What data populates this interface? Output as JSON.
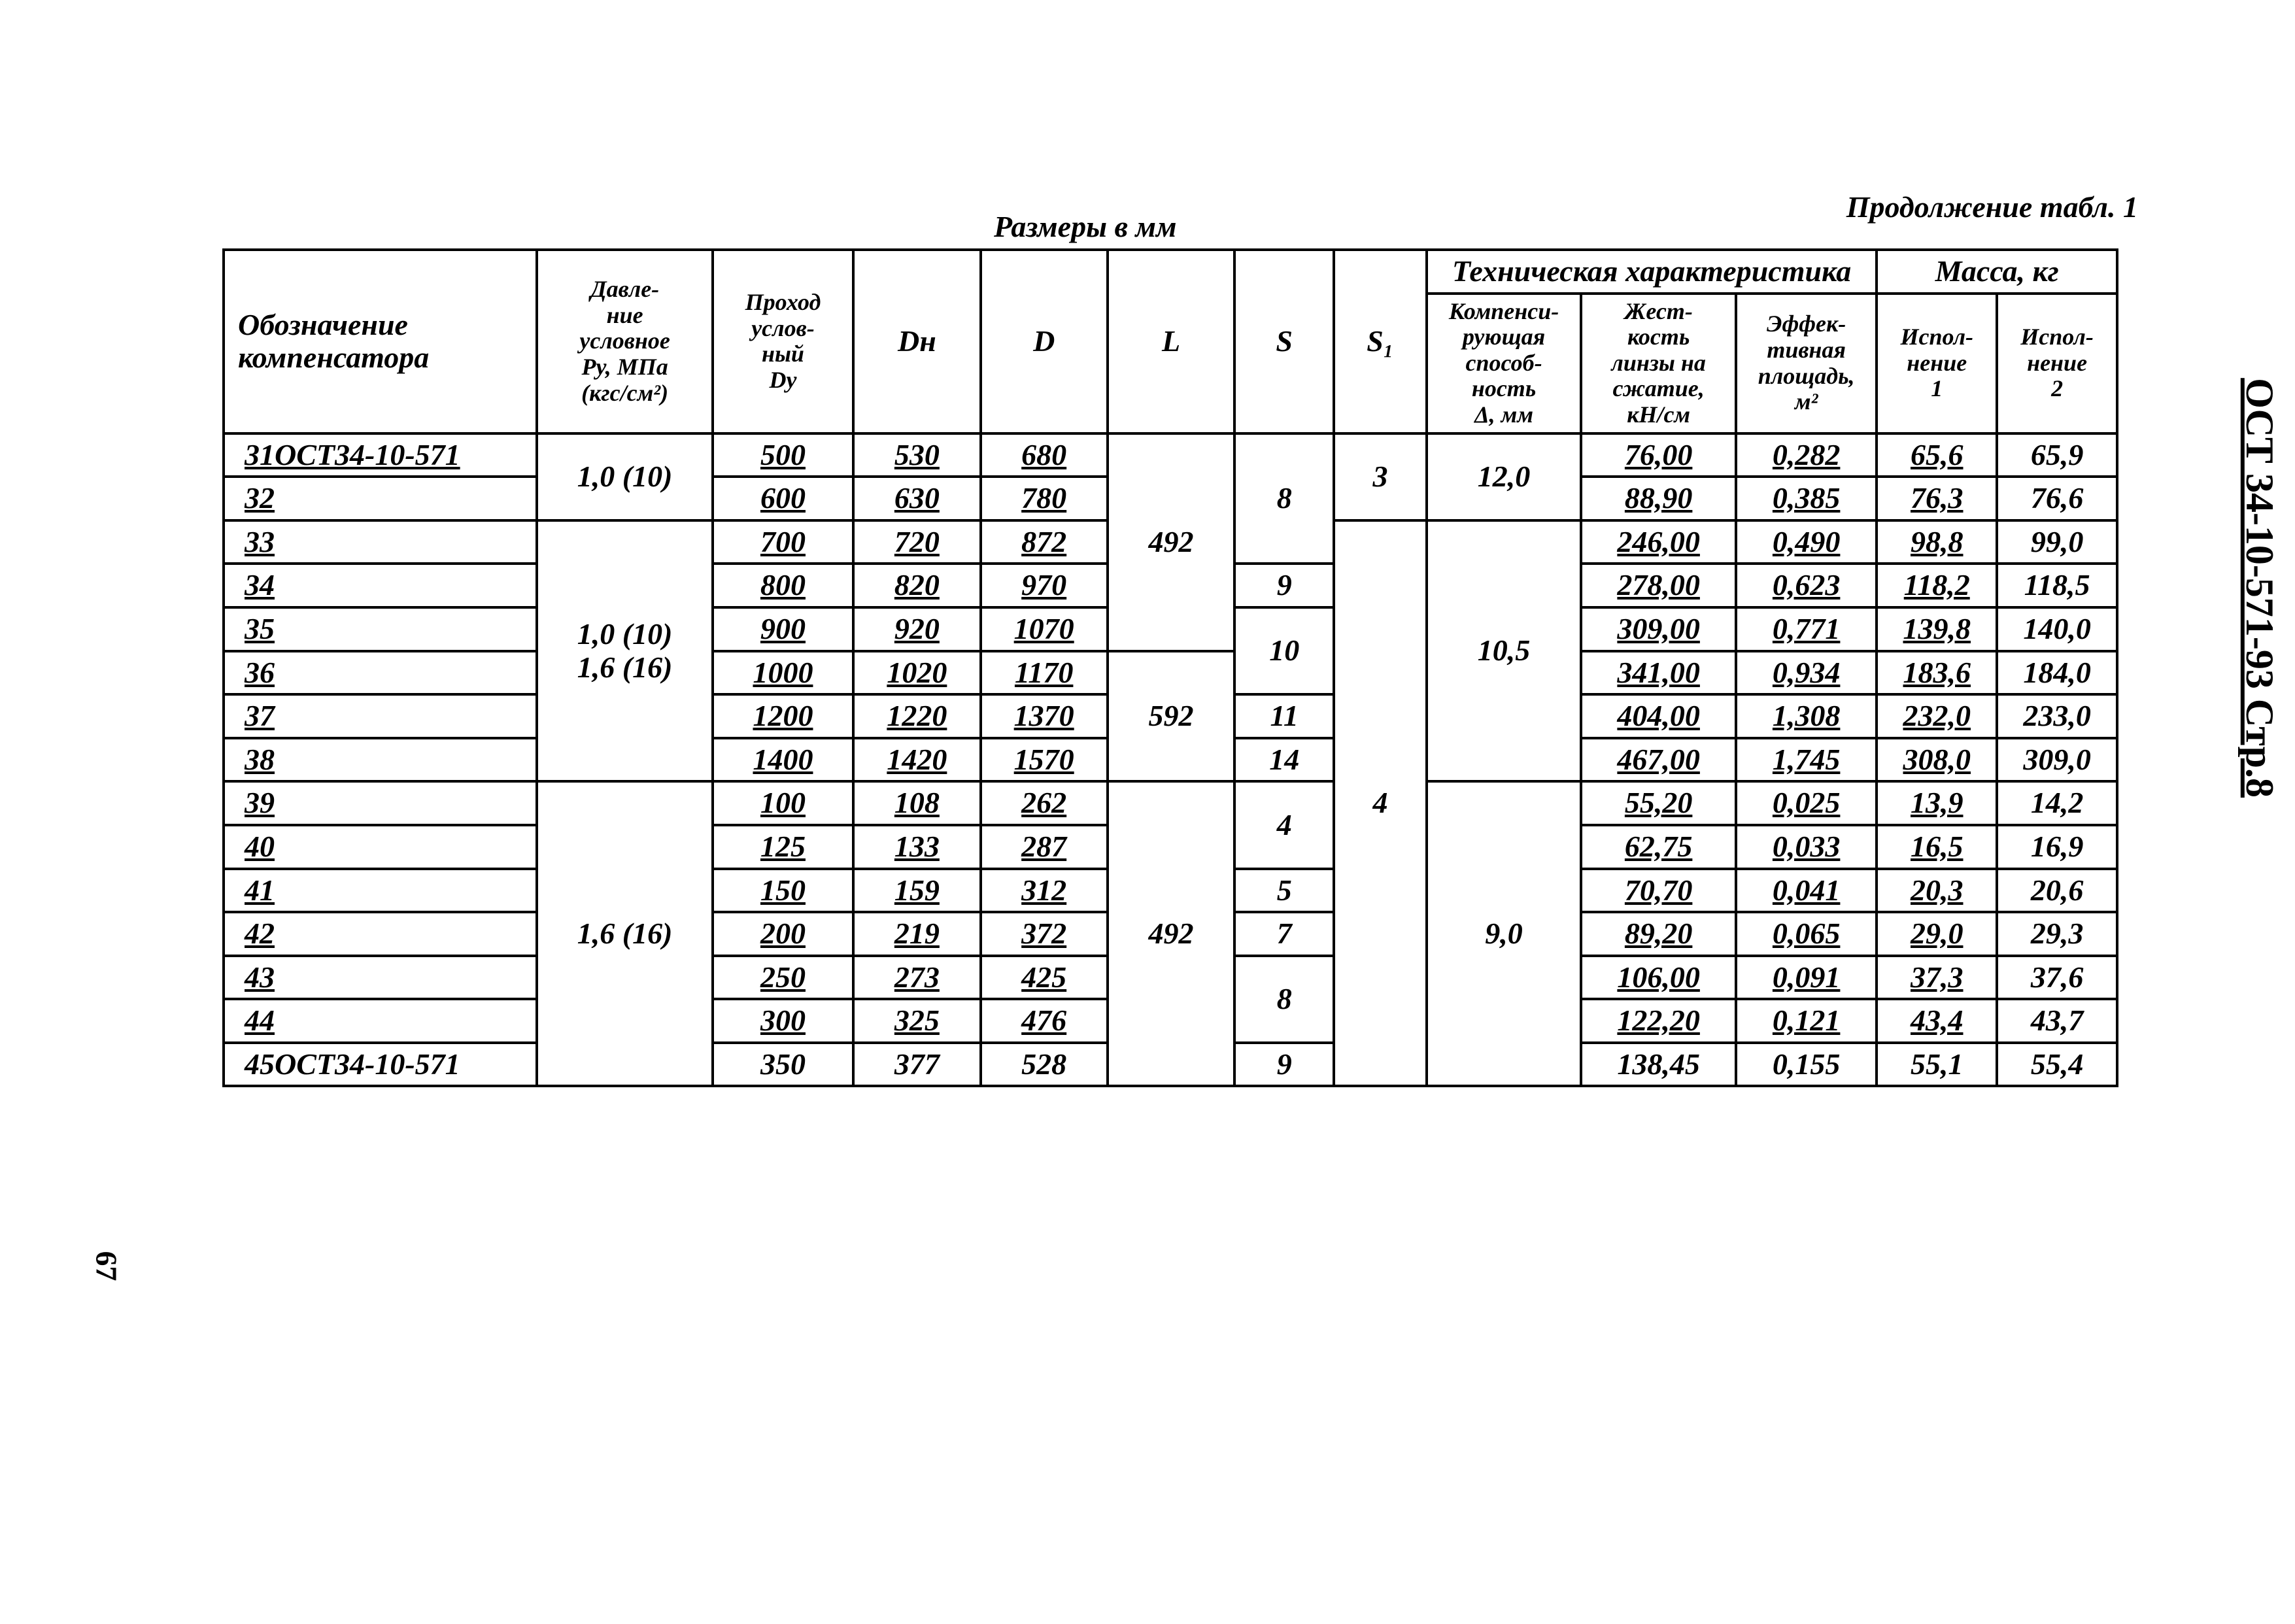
{
  "header": {
    "caption_center": "Размеры в мм",
    "caption_right": "Продолжение табл. 1"
  },
  "columns": {
    "designation": "Обозначение компенсатора",
    "pressure": "Давле-\nние\nусловное\nPу, МПа\n(кгс/см²)",
    "dy": "Проход\nуслов-\nный\nDу",
    "dn": "Dн",
    "d": "D",
    "l": "L",
    "s": "S",
    "s1": "S₁",
    "tech_group": "Техническая характеристика",
    "compensating": "Компенси-\nрующая\nспособ-\nность\nΔ, мм",
    "stiffness": "Жест-\nкость\nлинзы на\nсжатие,\nкН/см",
    "eff_area": "Эффек-\nтивная\nплощадь,\nм²",
    "mass_group": "Масса, кг",
    "m1": "Испол-\nнение\n1",
    "m2": "Испол-\nнение\n2"
  },
  "rows": [
    {
      "desig": "31ОСТ34-10-571",
      "press": "1,0 (10)",
      "dy": "500",
      "dn": "530",
      "d": "680",
      "l": "492",
      "s": "8",
      "s1": "3",
      "comp": "12,0",
      "stiff": "76,00",
      "area": "0,282",
      "m1": "65,6",
      "m2": "65,9"
    },
    {
      "desig": "32",
      "press": "",
      "dy": "600",
      "dn": "630",
      "d": "780",
      "l": "",
      "s": "",
      "s1": "",
      "comp": "",
      "stiff": "88,90",
      "area": "0,385",
      "m1": "76,3",
      "m2": "76,6"
    },
    {
      "desig": "33",
      "press": "1,0 (10)\n1,6 (16)",
      "dy": "700",
      "dn": "720",
      "d": "872",
      "l": "",
      "s": "",
      "s1": "4",
      "comp": "10,5",
      "stiff": "246,00",
      "area": "0,490",
      "m1": "98,8",
      "m2": "99,0"
    },
    {
      "desig": "34",
      "press": "",
      "dy": "800",
      "dn": "820",
      "d": "970",
      "l": "",
      "s": "9",
      "s1": "",
      "comp": "",
      "stiff": "278,00",
      "area": "0,623",
      "m1": "118,2",
      "m2": "118,5"
    },
    {
      "desig": "35",
      "press": "",
      "dy": "900",
      "dn": "920",
      "d": "1070",
      "l": "",
      "s": "10",
      "s1": "",
      "comp": "",
      "stiff": "309,00",
      "area": "0,771",
      "m1": "139,8",
      "m2": "140,0"
    },
    {
      "desig": "36",
      "press": "",
      "dy": "1000",
      "dn": "1020",
      "d": "1170",
      "l": "592",
      "s": "",
      "s1": "",
      "comp": "",
      "stiff": "341,00",
      "area": "0,934",
      "m1": "183,6",
      "m2": "184,0"
    },
    {
      "desig": "37",
      "press": "",
      "dy": "1200",
      "dn": "1220",
      "d": "1370",
      "l": "",
      "s": "11",
      "s1": "",
      "comp": "",
      "stiff": "404,00",
      "area": "1,308",
      "m1": "232,0",
      "m2": "233,0"
    },
    {
      "desig": "38",
      "press": "",
      "dy": "1400",
      "dn": "1420",
      "d": "1570",
      "l": "",
      "s": "14",
      "s1": "",
      "comp": "",
      "stiff": "467,00",
      "area": "1,745",
      "m1": "308,0",
      "m2": "309,0"
    },
    {
      "desig": "39",
      "press": "1,6 (16)",
      "dy": "100",
      "dn": "108",
      "d": "262",
      "l": "492",
      "s": "4",
      "s1": "",
      "comp": "9,0",
      "stiff": "55,20",
      "area": "0,025",
      "m1": "13,9",
      "m2": "14,2"
    },
    {
      "desig": "40",
      "press": "",
      "dy": "125",
      "dn": "133",
      "d": "287",
      "l": "",
      "s": "",
      "s1": "",
      "comp": "",
      "stiff": "62,75",
      "area": "0,033",
      "m1": "16,5",
      "m2": "16,9"
    },
    {
      "desig": "41",
      "press": "",
      "dy": "150",
      "dn": "159",
      "d": "312",
      "l": "",
      "s": "5",
      "s1": "",
      "comp": "",
      "stiff": "70,70",
      "area": "0,041",
      "m1": "20,3",
      "m2": "20,6"
    },
    {
      "desig": "42",
      "press": "",
      "dy": "200",
      "dn": "219",
      "d": "372",
      "l": "",
      "s": "7",
      "s1": "",
      "comp": "",
      "stiff": "89,20",
      "area": "0,065",
      "m1": "29,0",
      "m2": "29,3"
    },
    {
      "desig": "43",
      "press": "",
      "dy": "250",
      "dn": "273",
      "d": "425",
      "l": "",
      "s": "8",
      "s1": "",
      "comp": "",
      "stiff": "106,00",
      "area": "0,091",
      "m1": "37,3",
      "m2": "37,6"
    },
    {
      "desig": "44",
      "press": "",
      "dy": "300",
      "dn": "325",
      "d": "476",
      "l": "",
      "s": "",
      "s1": "",
      "comp": "",
      "stiff": "122,20",
      "area": "0,121",
      "m1": "43,4",
      "m2": "43,7"
    },
    {
      "desig": "45ОСТ34-10-571",
      "press": "",
      "dy": "350",
      "dn": "377",
      "d": "528",
      "l": "",
      "s": "9",
      "s1": "",
      "comp": "",
      "stiff": "138,45",
      "area": "0,155",
      "m1": "55,1",
      "m2": "55,4"
    }
  ],
  "sidelabel": "ОСТ 34-10-571-93 Стр.8",
  "pagenum": "67"
}
